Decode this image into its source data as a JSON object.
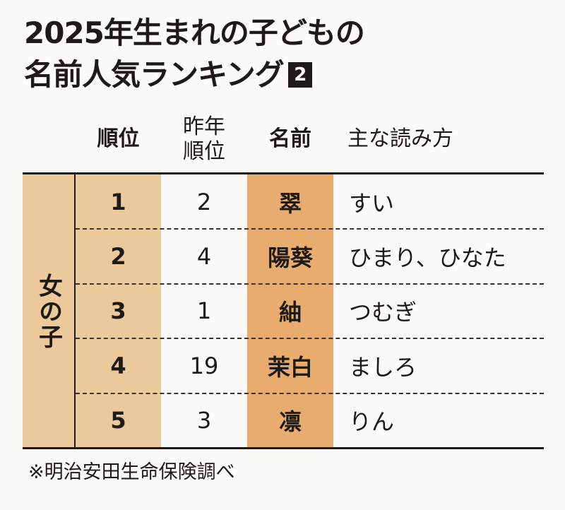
{
  "title": {
    "line1": "2025年生まれの子どもの",
    "line2": "名前人気ランキング",
    "badge": "2"
  },
  "headers": {
    "rank": "順位",
    "prev_rank_1": "昨年",
    "prev_rank_2": "順位",
    "name": "名前",
    "reading": "主な読み方"
  },
  "category": "女の子",
  "rows": [
    {
      "rank": "1",
      "prev": "2",
      "name": "翠",
      "reading": "すい"
    },
    {
      "rank": "2",
      "prev": "4",
      "name": "陽葵",
      "reading": "ひまり、ひなた"
    },
    {
      "rank": "3",
      "prev": "1",
      "name": "紬",
      "reading": "つむぎ"
    },
    {
      "rank": "4",
      "prev": "19",
      "name": "茉白",
      "reading": "ましろ"
    },
    {
      "rank": "5",
      "prev": "3",
      "name": "凛",
      "reading": "りん"
    }
  ],
  "footnote": "※明治安田生命保険調べ",
  "colors": {
    "category_bg": "#ecc99a",
    "rank_bg": "#ecc99a",
    "name_bg": "#e8ad6e"
  }
}
